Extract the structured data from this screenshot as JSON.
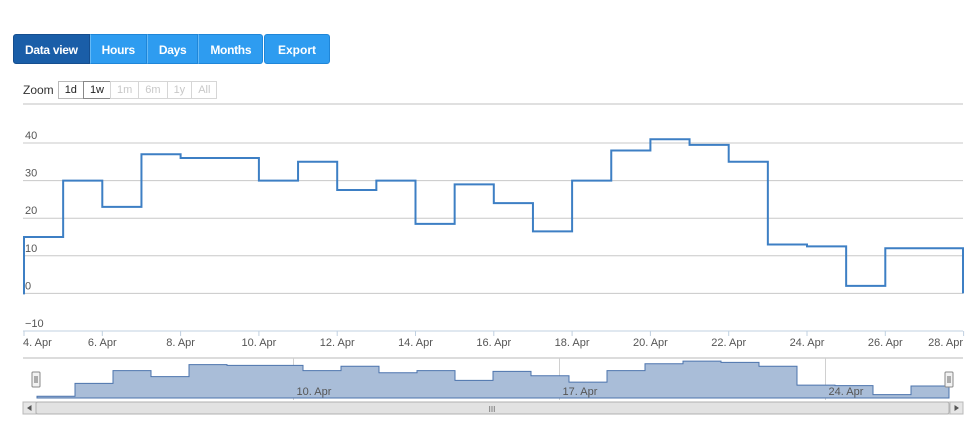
{
  "toolbar": {
    "tabs": [
      "Data view",
      "Hours",
      "Days",
      "Months"
    ],
    "export_label": "Export"
  },
  "zoom": {
    "label": "Zoom",
    "options": [
      "1d",
      "1w",
      "1m",
      "6m",
      "1y",
      "All"
    ],
    "enabled": [
      true,
      true,
      false,
      false,
      false,
      false
    ]
  },
  "colors": {
    "line": "#3d7fc4",
    "navigator_fill": "#a9bdd8",
    "navigator_line": "#4c74ad",
    "active_tab": "#1a5ea8",
    "tab": "#2e9cf0"
  },
  "chart_data": {
    "type": "line",
    "step": true,
    "x": [
      3,
      4,
      5,
      6,
      7,
      8,
      9,
      10,
      11,
      12,
      13,
      14,
      15,
      16,
      17,
      18,
      19,
      20,
      21,
      22,
      23,
      24,
      25,
      26,
      27,
      28
    ],
    "series": [
      {
        "values": [
          0,
          15,
          30,
          23,
          37,
          36,
          36,
          30,
          35,
          27.5,
          30,
          18.5,
          29,
          24,
          16.5,
          30,
          38,
          41,
          39.5,
          35,
          13,
          12.5,
          2,
          12,
          12,
          0
        ]
      }
    ],
    "x_unit": "Apr",
    "xticks": [
      "4. Apr",
      "6. Apr",
      "8. Apr",
      "10. Apr",
      "12. Apr",
      "14. Apr",
      "16. Apr",
      "18. Apr",
      "20. Apr",
      "22. Apr",
      "24. Apr",
      "26. Apr",
      "28. Apr"
    ],
    "yticks": [
      "−10",
      "0",
      "10",
      "20",
      "30",
      "40"
    ],
    "ylim": [
      -10,
      40
    ],
    "grid": true,
    "navigator": {
      "type": "area",
      "xticks": [
        "10. Apr",
        "17. Apr",
        "24. Apr"
      ],
      "scrollbar_grip": "III"
    }
  }
}
